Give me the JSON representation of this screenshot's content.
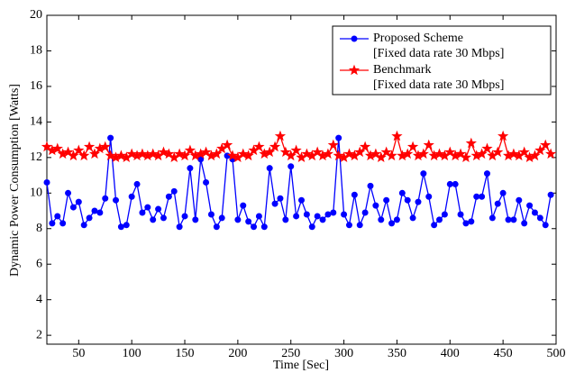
{
  "chart_data": {
    "type": "line",
    "x_label": "Time [Sec]",
    "y_label": "Dynamic Power Consumption [Watts]",
    "xlim": [
      20,
      500
    ],
    "ylim": [
      1.5,
      20
    ],
    "xticks": [
      50,
      100,
      150,
      200,
      250,
      300,
      350,
      400,
      450,
      500
    ],
    "yticks": [
      2,
      4,
      6,
      8,
      10,
      12,
      14,
      16,
      18,
      20
    ],
    "grid": false,
    "legend": "upper right",
    "x": [
      20,
      25,
      30,
      35,
      40,
      45,
      50,
      55,
      60,
      65,
      70,
      75,
      80,
      85,
      90,
      95,
      100,
      105,
      110,
      115,
      120,
      125,
      130,
      135,
      140,
      145,
      150,
      155,
      160,
      165,
      170,
      175,
      180,
      185,
      190,
      195,
      200,
      205,
      210,
      215,
      220,
      225,
      230,
      235,
      240,
      245,
      250,
      255,
      260,
      265,
      270,
      275,
      280,
      285,
      290,
      295,
      300,
      305,
      310,
      315,
      320,
      325,
      330,
      335,
      340,
      345,
      350,
      355,
      360,
      365,
      370,
      375,
      380,
      385,
      390,
      395,
      400,
      405,
      410,
      415,
      420,
      425,
      430,
      435,
      440,
      445,
      450,
      455,
      460,
      465,
      470,
      475,
      480,
      485,
      490,
      495
    ],
    "series": [
      {
        "name": "Proposed Scheme",
        "legend_subtitle": "[Fixed data rate 30 Mbps]",
        "color": "#0000ff",
        "marker": "circle",
        "values": [
          10.6,
          8.3,
          8.7,
          8.3,
          10.0,
          9.2,
          9.5,
          8.2,
          8.6,
          9.0,
          8.9,
          9.7,
          13.1,
          9.6,
          8.1,
          8.2,
          9.8,
          10.5,
          8.9,
          9.2,
          8.5,
          9.1,
          8.6,
          9.8,
          10.1,
          8.1,
          8.7,
          11.4,
          8.5,
          11.9,
          10.6,
          8.8,
          8.1,
          8.6,
          12.1,
          11.9,
          8.5,
          9.3,
          8.4,
          8.1,
          8.7,
          8.1,
          11.4,
          9.4,
          9.7,
          8.5,
          11.5,
          8.7,
          9.6,
          8.8,
          8.1,
          8.7,
          8.5,
          8.8,
          8.9,
          13.1,
          8.8,
          8.2,
          9.9,
          8.2,
          8.9,
          10.4,
          9.3,
          8.5,
          9.6,
          8.3,
          8.5,
          10.0,
          9.6,
          8.6,
          9.5,
          11.1,
          9.8,
          8.2,
          8.5,
          8.8,
          10.5,
          10.5,
          8.8,
          8.3,
          8.4,
          9.8,
          9.8,
          11.1,
          8.6,
          9.4,
          10.0,
          8.5,
          8.5,
          9.6,
          8.3,
          9.3,
          8.9,
          8.6,
          8.2,
          9.9
        ]
      },
      {
        "name": "Benchmark",
        "legend_subtitle": "[Fixed data rate 30 Mbps]",
        "color": "#ff0000",
        "marker": "star",
        "values": [
          12.6,
          12.4,
          12.5,
          12.2,
          12.3,
          12.1,
          12.4,
          12.1,
          12.6,
          12.2,
          12.5,
          12.6,
          12.1,
          12.0,
          12.1,
          12.0,
          12.2,
          12.1,
          12.2,
          12.1,
          12.2,
          12.1,
          12.3,
          12.2,
          12.0,
          12.2,
          12.1,
          12.4,
          12.1,
          12.2,
          12.3,
          12.1,
          12.2,
          12.5,
          12.7,
          12.1,
          12.0,
          12.2,
          12.1,
          12.4,
          12.6,
          12.2,
          12.3,
          12.6,
          13.2,
          12.3,
          12.1,
          12.4,
          12.0,
          12.2,
          12.1,
          12.3,
          12.1,
          12.2,
          12.7,
          12.1,
          12.0,
          12.2,
          12.1,
          12.3,
          12.6,
          12.1,
          12.2,
          12.0,
          12.3,
          12.1,
          13.2,
          12.1,
          12.2,
          12.6,
          12.1,
          12.2,
          12.7,
          12.1,
          12.2,
          12.1,
          12.3,
          12.1,
          12.2,
          12.0,
          12.8,
          12.1,
          12.2,
          12.5,
          12.1,
          12.3,
          13.2,
          12.1,
          12.2,
          12.1,
          12.3,
          12.0,
          12.1,
          12.4,
          12.7,
          12.2
        ]
      }
    ]
  }
}
